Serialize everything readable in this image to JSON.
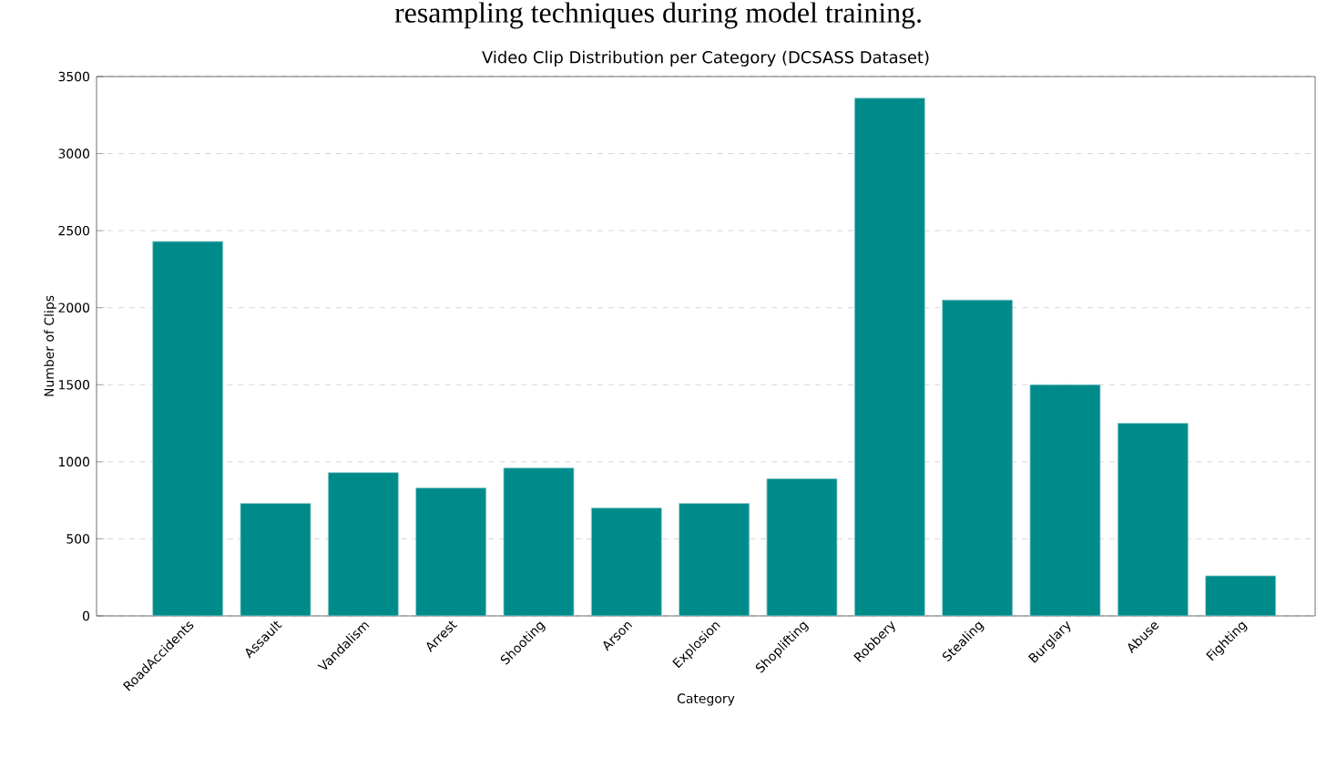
{
  "chart_data": {
    "type": "bar",
    "title": "Video Clip Distribution per Category (DCSASS Dataset)",
    "xlabel": "Category",
    "ylabel": "Number of Clips",
    "annotations": [
      "resampling techniques during model training."
    ],
    "categories": [
      "RoadAccidents",
      "Assault",
      "Vandalism",
      "Arrest",
      "Shooting",
      "Arson",
      "Explosion",
      "Shoplifting",
      "Robbery",
      "Stealing",
      "Burglary",
      "Abuse",
      "Fighting"
    ],
    "values": [
      2430,
      730,
      930,
      830,
      960,
      700,
      730,
      890,
      3360,
      2050,
      1500,
      1250,
      260
    ],
    "color": "#008b8b",
    "ylim": [
      0,
      3500
    ],
    "yticks": [
      0,
      500,
      1000,
      1500,
      2000,
      2500,
      3000,
      3500
    ],
    "grid": "y"
  }
}
